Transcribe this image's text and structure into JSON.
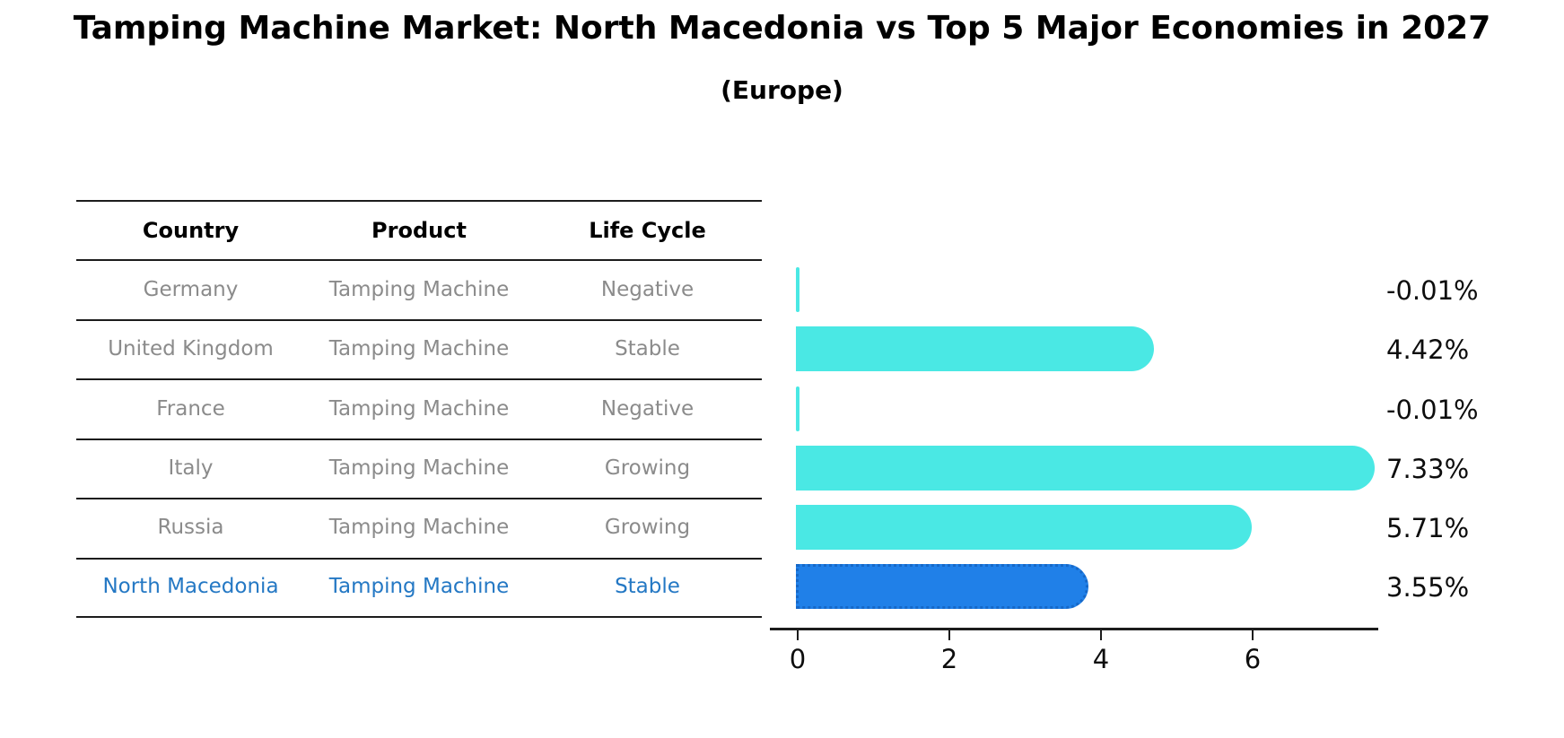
{
  "title": "Tamping Machine Market: North Macedonia vs Top 5 Major Economies in 2027",
  "subtitle": "(Europe)",
  "table": {
    "headers": [
      "Country",
      "Product",
      "Life Cycle"
    ],
    "rows": [
      {
        "country": "Germany",
        "product": "Tamping Machine",
        "life_cycle": "Negative",
        "highlight": false
      },
      {
        "country": "United Kingdom",
        "product": "Tamping Machine",
        "life_cycle": "Stable",
        "highlight": false
      },
      {
        "country": "France",
        "product": "Tamping Machine",
        "life_cycle": "Negative",
        "highlight": false
      },
      {
        "country": "Italy",
        "product": "Tamping Machine",
        "life_cycle": "Growing",
        "highlight": false
      },
      {
        "country": "Russia",
        "product": "Tamping Machine",
        "life_cycle": "Growing",
        "highlight": false
      },
      {
        "country": "North Macedonia",
        "product": "Tamping Machine",
        "life_cycle": "Stable",
        "highlight": true
      }
    ]
  },
  "chart_data": {
    "type": "bar",
    "orientation": "horizontal",
    "title": "Tamping Machine Market: North Macedonia vs Top 5 Major Economies in 2027",
    "subtitle": "(Europe)",
    "categories": [
      "Germany",
      "United Kingdom",
      "France",
      "Italy",
      "Russia",
      "North Macedonia"
    ],
    "values": [
      -0.01,
      4.42,
      -0.01,
      7.33,
      5.71,
      3.55
    ],
    "value_labels": [
      "-0.01%",
      "4.42%",
      "-0.01%",
      "7.33%",
      "5.71%",
      "3.55%"
    ],
    "xticks": [
      "0",
      "2",
      "4",
      "6"
    ],
    "xlim": [
      0,
      7.66
    ],
    "xlabel": "",
    "ylabel": "",
    "grid": false,
    "legend": "none",
    "highlight_index": 5
  },
  "colors": {
    "bar": "#4ae8e4",
    "highlight_bar": "#2080e8",
    "highlight_text": "#2478c4",
    "table_text": "#8b8b8b",
    "axis": "#1c1c1c",
    "background": "#ffffff"
  }
}
